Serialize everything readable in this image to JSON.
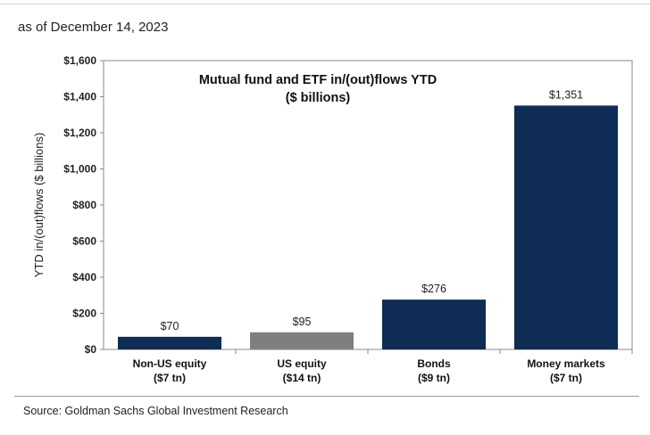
{
  "header": {
    "as_of": "as of December 14, 2023"
  },
  "footer": {
    "source": "Source: Goldman Sachs Global Investment Research"
  },
  "colors": {
    "dark_bar": "#0f2c55",
    "grey_bar": "#7f7f7f",
    "axis": "#888888"
  },
  "chart_data": {
    "type": "bar",
    "title": "Mutual fund and ETF in/(out)flows YTD",
    "subtitle": "($ billions)",
    "ylabel": "YTD in/(out)flows ($ billions)",
    "xlabel": "",
    "categories": [
      [
        "Non-US equity",
        "($7 tn)"
      ],
      [
        "US equity",
        "($14 tn)"
      ],
      [
        "Bonds",
        "($9 tn)"
      ],
      [
        "Money markets",
        "($7 tn)"
      ]
    ],
    "values": [
      70,
      95,
      276,
      1351
    ],
    "value_labels": [
      "$70",
      "$95",
      "$276",
      "$1,351"
    ],
    "bar_colors": [
      "#0f2c55",
      "#7f7f7f",
      "#0f2c55",
      "#0f2c55"
    ],
    "ylim": [
      0,
      1600
    ],
    "yticks": [
      0,
      200,
      400,
      600,
      800,
      1000,
      1200,
      1400,
      1600
    ],
    "ytick_labels": [
      "$0",
      "$200",
      "$400",
      "$600",
      "$800",
      "$1,000",
      "$1,200",
      "$1,400",
      "$1,600"
    ],
    "grid": false,
    "legend": "none"
  }
}
